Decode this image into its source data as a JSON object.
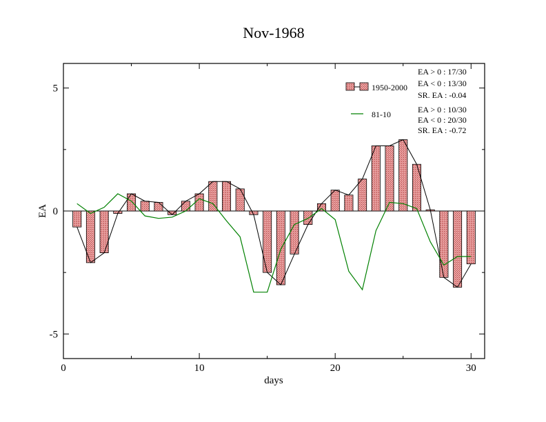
{
  "chart_data": {
    "type": "bar",
    "title": "Nov-1968",
    "xlabel": "days",
    "ylabel": "EA",
    "xlim": [
      0,
      31
    ],
    "ylim": [
      -6,
      6
    ],
    "x_ticks": [
      0,
      10,
      20,
      30
    ],
    "x_tick_labels": [
      "0",
      "10",
      "20",
      "30"
    ],
    "y_ticks": [
      5,
      0,
      -5
    ],
    "y_tick_labels": [
      "5",
      "0",
      "-5"
    ],
    "grid": false,
    "legend": {
      "placement": "top-right",
      "entries": [
        {
          "label": "1950-2000",
          "stats": [
            "EA > 0 : 17/30",
            "EA < 0 : 13/30",
            "SR. EA : -0.04"
          ]
        },
        {
          "label": "81-10",
          "stats": [
            "EA > 0 : 10/30",
            "EA < 0 : 20/30",
            "SR. EA : -0.72"
          ]
        }
      ]
    },
    "x": [
      1,
      2,
      3,
      4,
      5,
      6,
      7,
      8,
      9,
      10,
      11,
      12,
      13,
      14,
      15,
      16,
      17,
      18,
      19,
      20,
      21,
      22,
      23,
      24,
      25,
      26,
      27,
      28,
      29,
      30
    ],
    "series": [
      {
        "name": "1950-2000",
        "type": "bar",
        "color": "#e8a0a0",
        "values": [
          -0.65,
          -2.1,
          -1.7,
          -0.1,
          0.7,
          0.4,
          0.35,
          -0.15,
          0.4,
          0.7,
          1.2,
          1.2,
          0.9,
          -0.15,
          -2.5,
          -3.0,
          -1.75,
          -0.55,
          0.3,
          0.85,
          0.65,
          1.3,
          2.65,
          2.65,
          2.9,
          1.9,
          0.05,
          -2.7,
          -3.1,
          -2.15
        ]
      },
      {
        "name": "81-10",
        "type": "line",
        "color": "#008000",
        "values": [
          0.3,
          -0.1,
          0.15,
          0.7,
          0.4,
          -0.2,
          -0.3,
          -0.25,
          0.0,
          0.5,
          0.3,
          -0.4,
          -1.05,
          -3.3,
          -3.3,
          -1.55,
          -0.55,
          -0.3,
          0.1,
          -0.35,
          -2.45,
          -3.2,
          -0.8,
          0.35,
          0.3,
          0.1,
          -1.25,
          -2.2,
          -1.85,
          -1.85
        ]
      }
    ]
  }
}
